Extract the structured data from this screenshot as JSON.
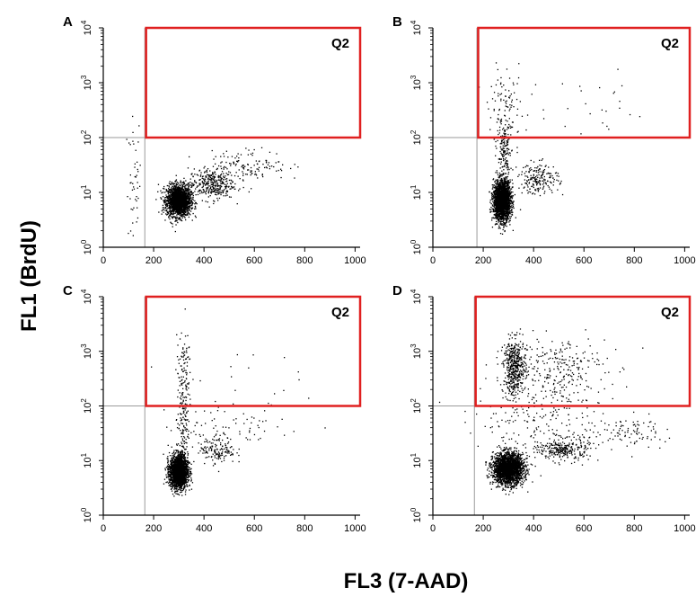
{
  "figure": {
    "ylabel": "FL1 (BrdU)",
    "xlabel": "FL3 (7-AAD)"
  },
  "colors": {
    "gate": "#e02020",
    "dots": "#000000",
    "axis": "#000000",
    "guide": "#9a9a9a"
  },
  "chart_data": [
    {
      "type": "scatter",
      "panel": "A",
      "gate_label": "Q2",
      "gate": {
        "x": [
          170,
          1020
        ],
        "y": [
          100,
          10000
        ]
      },
      "quadrant_lines": {
        "x": 165,
        "y": 100
      },
      "xlim": [
        0,
        1020
      ],
      "ylim_log10": [
        0,
        4
      ],
      "xticks": [
        "0",
        "200",
        "400",
        "600",
        "800",
        "1000"
      ],
      "yticks": [
        {
          "base": "10",
          "exp": "0"
        },
        {
          "base": "10",
          "exp": "1"
        },
        {
          "base": "10",
          "exp": "2"
        },
        {
          "base": "10",
          "exp": "3"
        },
        {
          "base": "10",
          "exp": "4"
        }
      ],
      "populations": [
        {
          "n": 2000,
          "cx": 300,
          "sx": 24,
          "cy": 0.85,
          "sy": 0.14
        },
        {
          "n": 350,
          "cx": 430,
          "sx": 45,
          "cy": 1.15,
          "sy": 0.14
        },
        {
          "n": 130,
          "cx": 580,
          "sx": 75,
          "cy": 1.5,
          "sy": 0.14
        },
        {
          "n": 45,
          "cx": 125,
          "sx": 16,
          "cy": 1.2,
          "sy": 0.55
        }
      ]
    },
    {
      "type": "scatter",
      "panel": "B",
      "gate_label": "Q2",
      "gate": {
        "x": [
          180,
          1020
        ],
        "y": [
          100,
          10000
        ]
      },
      "quadrant_lines": {
        "x": 175,
        "y": 100
      },
      "xlim": [
        0,
        1020
      ],
      "ylim_log10": [
        0,
        4
      ],
      "xticks": [
        "0",
        "200",
        "400",
        "600",
        "800",
        "1000"
      ],
      "yticks": [
        {
          "base": "10",
          "exp": "0"
        },
        {
          "base": "10",
          "exp": "1"
        },
        {
          "base": "10",
          "exp": "2"
        },
        {
          "base": "10",
          "exp": "3"
        },
        {
          "base": "10",
          "exp": "4"
        }
      ],
      "populations": [
        {
          "n": 2200,
          "cx": 275,
          "sx": 17,
          "cy": 0.85,
          "sy": 0.18
        },
        {
          "n": 180,
          "cx": 285,
          "sx": 14,
          "cy": 1.7,
          "sy": 0.35
        },
        {
          "n": 200,
          "cx": 420,
          "sx": 40,
          "cy": 1.25,
          "sy": 0.14
        },
        {
          "n": 90,
          "cx": 290,
          "sx": 35,
          "cy": 2.5,
          "sy": 0.35
        },
        {
          "n": 30,
          "cx": 600,
          "sx": 150,
          "cy": 2.5,
          "sy": 0.3
        }
      ]
    },
    {
      "type": "scatter",
      "panel": "C",
      "gate_label": "Q2",
      "gate": {
        "x": [
          170,
          1020
        ],
        "y": [
          100,
          10000
        ]
      },
      "quadrant_lines": {
        "x": 165,
        "y": 100
      },
      "xlim": [
        0,
        1020
      ],
      "ylim_log10": [
        0,
        4
      ],
      "xticks": [
        "0",
        "200",
        "400",
        "600",
        "800",
        "1000"
      ],
      "yticks": [
        {
          "base": "10",
          "exp": "0"
        },
        {
          "base": "10",
          "exp": "1"
        },
        {
          "base": "10",
          "exp": "2"
        },
        {
          "base": "10",
          "exp": "3"
        },
        {
          "base": "10",
          "exp": "4"
        }
      ],
      "populations": [
        {
          "n": 2100,
          "cx": 300,
          "sx": 18,
          "cy": 0.8,
          "sy": 0.15
        },
        {
          "n": 140,
          "cx": 315,
          "sx": 12,
          "cy": 1.7,
          "sy": 0.45
        },
        {
          "n": 80,
          "cx": 320,
          "sx": 14,
          "cy": 2.7,
          "sy": 0.3
        },
        {
          "n": 150,
          "cx": 455,
          "sx": 35,
          "cy": 1.2,
          "sy": 0.13
        },
        {
          "n": 70,
          "cx": 520,
          "sx": 140,
          "cy": 1.65,
          "sy": 0.2
        },
        {
          "n": 20,
          "cx": 500,
          "sx": 130,
          "cy": 2.5,
          "sy": 0.3
        }
      ]
    },
    {
      "type": "scatter",
      "panel": "D",
      "gate_label": "Q2",
      "gate": {
        "x": [
          170,
          1020
        ],
        "y": [
          100,
          10000
        ]
      },
      "quadrant_lines": {
        "x": 165,
        "y": 100
      },
      "xlim": [
        0,
        1020
      ],
      "ylim_log10": [
        0,
        4
      ],
      "xticks": [
        "0",
        "200",
        "400",
        "600",
        "800",
        "1000"
      ],
      "yticks": [
        {
          "base": "10",
          "exp": "0"
        },
        {
          "base": "10",
          "exp": "1"
        },
        {
          "base": "10",
          "exp": "2"
        },
        {
          "base": "10",
          "exp": "3"
        },
        {
          "base": "10",
          "exp": "4"
        }
      ],
      "populations": [
        {
          "n": 2300,
          "cx": 300,
          "sx": 30,
          "cy": 0.85,
          "sy": 0.14
        },
        {
          "n": 450,
          "cx": 325,
          "sx": 22,
          "cy": 2.7,
          "sy": 0.25
        },
        {
          "n": 280,
          "cx": 470,
          "sx": 110,
          "cy": 2.7,
          "sy": 0.3
        },
        {
          "n": 280,
          "cx": 520,
          "sx": 50,
          "cy": 1.2,
          "sy": 0.1
        },
        {
          "n": 180,
          "cx": 420,
          "sx": 160,
          "cy": 1.75,
          "sy": 0.3
        },
        {
          "n": 90,
          "cx": 760,
          "sx": 90,
          "cy": 1.5,
          "sy": 0.12
        }
      ]
    }
  ]
}
